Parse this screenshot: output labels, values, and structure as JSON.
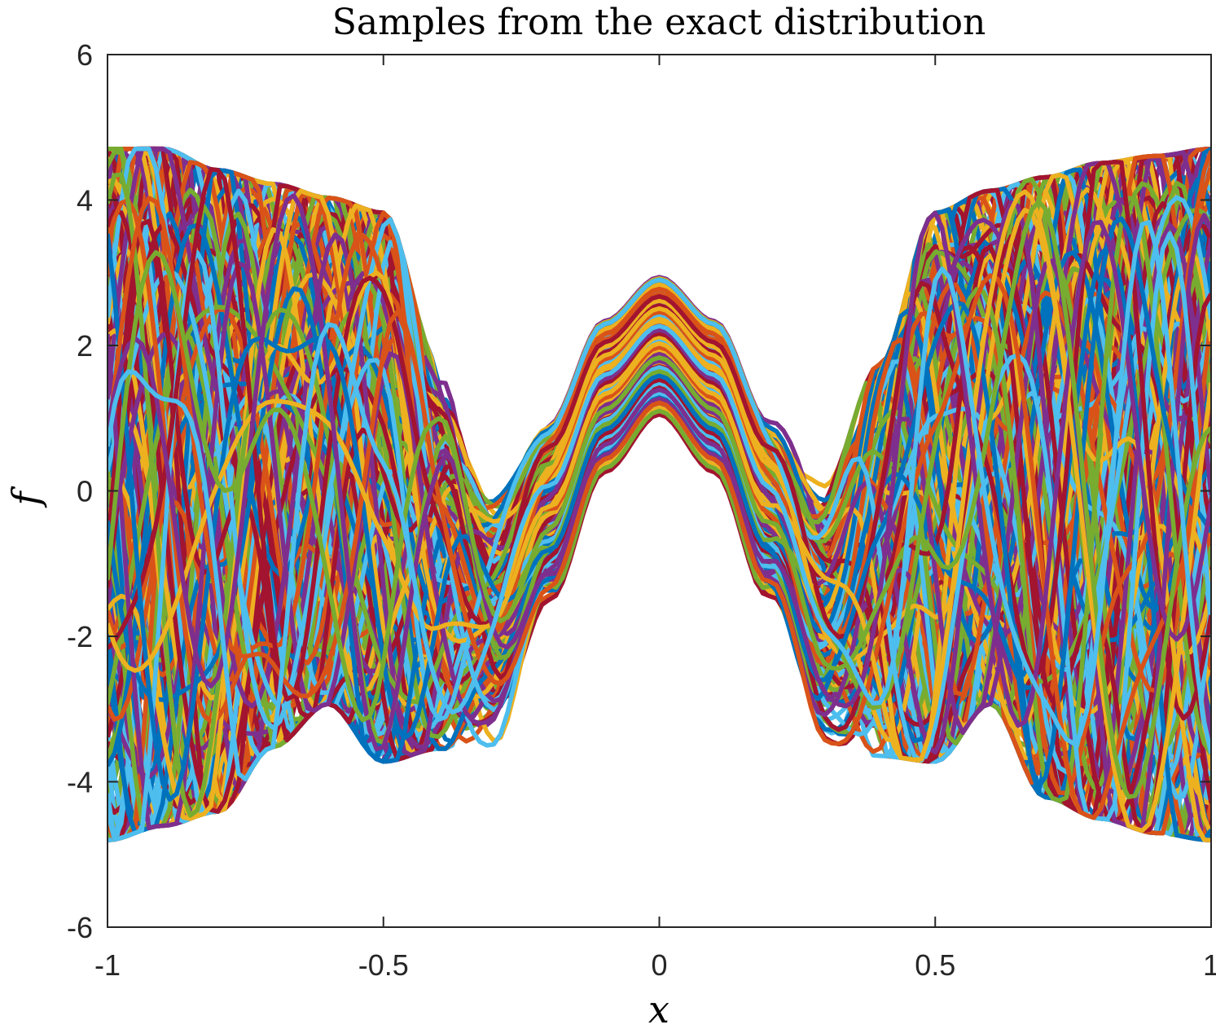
{
  "chart_data": {
    "type": "line",
    "title": "Samples from the exact distribution",
    "xlabel": "x",
    "ylabel": "f",
    "xlim": [
      -1,
      1
    ],
    "ylim": [
      -6,
      6
    ],
    "xticks": [
      -1,
      -0.5,
      0,
      0.5,
      1
    ],
    "xtick_labels": [
      "-1",
      "-0.5",
      "0",
      "0.5",
      "1"
    ],
    "yticks": [
      -6,
      -4,
      -2,
      0,
      2,
      4,
      6
    ],
    "ytick_labels": [
      "-6",
      "-4",
      "-2",
      "0",
      "2",
      "4",
      "6"
    ],
    "grid": false,
    "legend": "none",
    "series_colors": [
      "#0072BD",
      "#D95319",
      "#EDB120",
      "#7E2F8E",
      "#77AC30",
      "#4DBEEE",
      "#A2142F"
    ],
    "envelope": {
      "x": [
        -1,
        -0.9,
        -0.8,
        -0.7,
        -0.6,
        -0.5,
        -0.4,
        -0.3,
        -0.2,
        -0.1,
        0,
        0.1,
        0.2,
        0.3,
        0.4,
        0.5,
        0.6,
        0.7,
        0.8,
        0.9,
        1
      ],
      "upper": [
        4.8,
        4.8,
        4.5,
        4.3,
        4.1,
        3.9,
        1.8,
        0.1,
        1.0,
        2.4,
        3.0,
        2.4,
        1.0,
        0.1,
        1.8,
        3.9,
        4.2,
        4.4,
        4.6,
        4.7,
        4.8
      ],
      "lower": [
        -4.9,
        -4.7,
        -4.5,
        -3.6,
        -3.0,
        -3.8,
        -3.6,
        -3.6,
        -1.6,
        0.2,
        1.0,
        0.2,
        -1.6,
        -3.5,
        -3.7,
        -3.8,
        -3.0,
        -4.3,
        -4.6,
        -4.8,
        -4.9
      ]
    },
    "mean_curve": {
      "x": [
        -1,
        -0.9,
        -0.8,
        -0.7,
        -0.6,
        -0.5,
        -0.4,
        -0.3,
        -0.2,
        -0.1,
        0,
        0.1,
        0.2,
        0.3,
        0.4,
        0.5,
        0.6,
        0.7,
        0.8,
        0.9,
        1
      ],
      "y": [
        0,
        0.3,
        0.2,
        0.2,
        0.6,
        -0.5,
        -1.8,
        -1.6,
        -0.4,
        1.2,
        2.0,
        1.2,
        -0.4,
        -1.6,
        -1.8,
        -0.4,
        0.6,
        0.2,
        0.2,
        0.1,
        0
      ]
    },
    "sample_count": 300
  }
}
